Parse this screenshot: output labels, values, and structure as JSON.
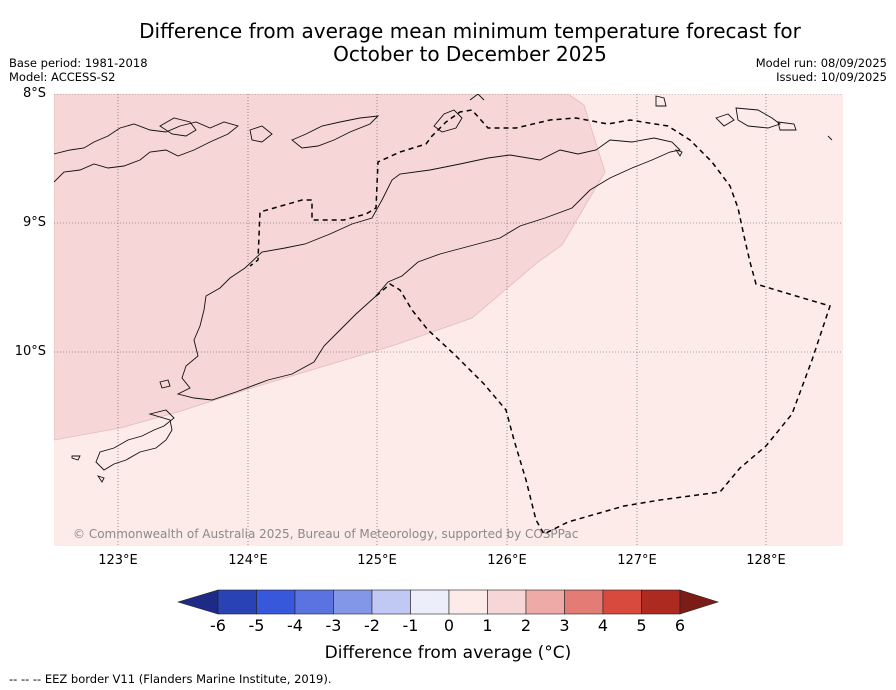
{
  "header": {
    "title_line1": "Difference from average mean minimum temperature forecast for",
    "title_line2": "October to December 2025",
    "base_period": "Base period: 1981-2018",
    "model": "Model: ACCESS-S2",
    "model_run": "Model run: 08/09/2025",
    "issued": "Issued: 10/09/2025"
  },
  "map": {
    "lat_labels": [
      "8°S",
      "9°S",
      "10°S"
    ],
    "lon_labels": [
      "123°E",
      "124°E",
      "125°E",
      "126°E",
      "127°E",
      "128°E"
    ],
    "extent": {
      "lon_min": 122.5,
      "lon_max": 128.6,
      "lat_north": -8.0,
      "lat_south": -11.5
    },
    "fill_categories": [
      {
        "range": "1 to 2",
        "color": "#f6d6d6",
        "region": "northwest"
      },
      {
        "range": "0 to 1",
        "color": "#fcebe9",
        "region": "southeast"
      }
    ],
    "copyright": "© Commonwealth of Australia 2025, Bureau of Meteorology, supported by COSPPac",
    "eez_legend": "--  --  -- EEZ border V11 (Flanders Marine Institute, 2019)."
  },
  "colorbar": {
    "title": "Difference from average (°C)",
    "ticks": [
      "-6",
      "-5",
      "-4",
      "-3",
      "-2",
      "-1",
      "0",
      "1",
      "2",
      "3",
      "4",
      "5",
      "6"
    ],
    "colors": [
      "#1e2b86",
      "#2a43b4",
      "#3858dc",
      "#5a73e0",
      "#8397e8",
      "#c0c8f4",
      "#eceef9",
      "#fcebe9",
      "#f6d6d6",
      "#edaaa6",
      "#e37c74",
      "#d84a3e",
      "#ad2a20",
      "#7c1c16"
    ]
  }
}
